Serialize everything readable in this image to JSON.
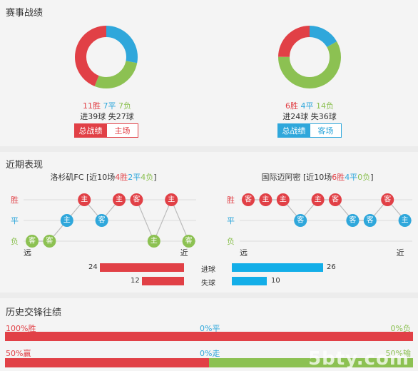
{
  "sections": {
    "season": "赛事战绩",
    "recent": "近期表现",
    "history": "历史交锋往绩"
  },
  "home": {
    "wins": "11胜",
    "draws": "7平",
    "losses": "7负",
    "goals": "进39球 失27球",
    "win_n": 11,
    "draw_n": 7,
    "loss_n": 7,
    "tab_total": "总战绩",
    "tab_venue": "主场"
  },
  "away": {
    "wins": "6胜",
    "draws": "4平",
    "losses": "14负",
    "goals": "进24球 失36球",
    "win_n": 6,
    "draw_n": 4,
    "loss_n": 14,
    "tab_total": "总战绩",
    "tab_venue": "客场"
  },
  "recent": {
    "home": {
      "team": "洛杉矶FC",
      "prefix": "[近10场",
      "w": "4胜",
      "d": "2平",
      "l": "4负",
      "suffix": "]",
      "results": [
        {
          "r": "L",
          "v": "客"
        },
        {
          "r": "L",
          "v": "客"
        },
        {
          "r": "D",
          "v": "主"
        },
        {
          "r": "W",
          "v": "主"
        },
        {
          "r": "D",
          "v": "客"
        },
        {
          "r": "W",
          "v": "主"
        },
        {
          "r": "W",
          "v": "客"
        },
        {
          "r": "L",
          "v": "主"
        },
        {
          "r": "W",
          "v": "主"
        },
        {
          "r": "L",
          "v": "客"
        }
      ]
    },
    "away": {
      "team": "国际迈阿密",
      "prefix": "[近10场",
      "w": "6胜",
      "d": "4平",
      "l": "0负",
      "suffix": "]",
      "results": [
        {
          "r": "W",
          "v": "客"
        },
        {
          "r": "W",
          "v": "主"
        },
        {
          "r": "W",
          "v": "主"
        },
        {
          "r": "D",
          "v": "客"
        },
        {
          "r": "W",
          "v": "主"
        },
        {
          "r": "W",
          "v": "客"
        },
        {
          "r": "D",
          "v": "客"
        },
        {
          "r": "D",
          "v": "客"
        },
        {
          "r": "W",
          "v": "客"
        },
        {
          "r": "D",
          "v": "主"
        }
      ]
    },
    "labels": {
      "win": "胜",
      "draw": "平",
      "loss": "负",
      "far": "远",
      "near": "近"
    }
  },
  "stats": {
    "scored_label": "进球",
    "conceded_label": "失球",
    "home_scored": 24,
    "away_scored": 26,
    "home_conceded": 12,
    "away_conceded": 10
  },
  "history": {
    "row1": {
      "left": "100%胜",
      "mid": "0%平",
      "right": "0%负",
      "home_pct": 100,
      "mid_pct": 0
    },
    "row2": {
      "left": "50%赢",
      "mid": "0%走",
      "right": "50%输",
      "home_pct": 50,
      "mid_pct": 0
    }
  },
  "watermark": "5bty.com",
  "colors": {
    "red": "#e14046",
    "blue": "#2fa7db",
    "green": "#8cc152",
    "bar_blue": "#13aee8"
  }
}
